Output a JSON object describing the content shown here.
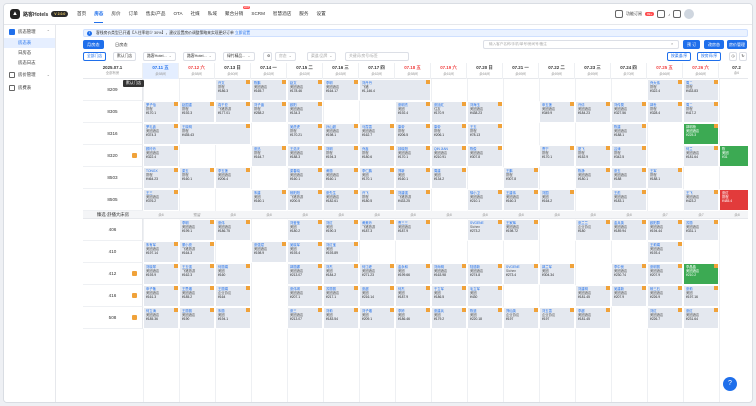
{
  "app": {
    "name": "路客Hotels",
    "version": "V 2.0.0"
  },
  "nav": {
    "items": [
      "首页",
      "房态",
      "房价",
      "订单",
      "售卖/产品",
      "OTA",
      "社媒",
      "私域",
      "聚合分销",
      "SCRM",
      "智慧酒店",
      "服务",
      "设置"
    ],
    "active_index": 1,
    "hot_badge": "HOT"
  },
  "topright": {
    "function_label": "功能订阅",
    "badge_count": "99+"
  },
  "sidebar": {
    "group1": "房态管理",
    "items": [
      "房态表",
      "日房态",
      "房态日志"
    ],
    "active_index": 0,
    "group2": "房价管理",
    "group3": "房费表"
  },
  "notice": {
    "text": "客栈房价类型已开通【人住率较少 30%】，建议设置房价调整策略来实现更好订单",
    "link": "立即设置"
  },
  "view_tabs": {
    "tab1": "月房态",
    "tab2": "日房态",
    "active_index": 0
  },
  "search": {
    "placeholder": "输入客户名称/手机/单号/房间号/备注"
  },
  "actions": {
    "book": "预 订",
    "batch": "改房态",
    "room_manage": "房价管理",
    "more": "更多设置"
  },
  "filters": {
    "all_stores": "全部门店",
    "default_store": "默认门店",
    "store1": "路客Hotel...",
    "store2": "路客Hotel...",
    "store3": "绿竹精品...",
    "status": "房态",
    "channel": "渠道/品牌",
    "keyword": "关键词/房号/标签",
    "sort_date": "按渠道/序",
    "sort_room": "按房间/序"
  },
  "tooltip": "默认门店",
  "date_header": {
    "label": "2025.07.1",
    "sub": "全部有房"
  },
  "days": [
    {
      "d": "07.11 五",
      "s": "余58间",
      "we": true,
      "today": true
    },
    {
      "d": "07.12 六",
      "s": "余58间",
      "we": true,
      "today": false
    },
    {
      "d": "07.13 日",
      "s": "余60间",
      "we": false,
      "today": false
    },
    {
      "d": "07.14 一",
      "s": "余62间",
      "we": false,
      "today": false
    },
    {
      "d": "07.15 二",
      "s": "余62间",
      "we": false,
      "today": false
    },
    {
      "d": "07.16 三",
      "s": "余63间",
      "we": false,
      "today": false
    },
    {
      "d": "07.17 四",
      "s": "余62间",
      "we": false,
      "today": false
    },
    {
      "d": "07.18 五",
      "s": "余58间",
      "we": true,
      "today": false
    },
    {
      "d": "07.19 六",
      "s": "余61间",
      "we": true,
      "today": false
    },
    {
      "d": "07.20 日",
      "s": "余64间",
      "we": false,
      "today": false
    },
    {
      "d": "07.21 一",
      "s": "余69间",
      "we": false,
      "today": false
    },
    {
      "d": "07.22 二",
      "s": "余69间",
      "we": false,
      "today": false
    },
    {
      "d": "07.23 三",
      "s": "余69间",
      "we": false,
      "today": false
    },
    {
      "d": "07.24 四",
      "s": "余70间",
      "we": false,
      "today": false
    },
    {
      "d": "07.25 五",
      "s": "余66间",
      "we": true,
      "today": false
    },
    {
      "d": "07.26 六",
      "s": "余66间",
      "we": true,
      "today": false
    },
    {
      "d": "07.2",
      "s": "余6",
      "we": false,
      "today": false
    }
  ],
  "floor": {
    "label": "臻选·舒播大床房",
    "counts": [
      "余6",
      "预留",
      "余8",
      "余8",
      "余8",
      "余8",
      "余8",
      "余8",
      "余8",
      "余8",
      "余8",
      "余8",
      "余8",
      "余8",
      "余7",
      "余7",
      "余8"
    ]
  },
  "rooms": [
    "8209",
    "8305",
    "8316",
    "8320",
    "8503",
    "8505",
    "406",
    "410",
    "412",
    "416",
    "508"
  ],
  "bookings": [
    {
      "r": 0,
      "c": 3,
      "w": 1,
      "n": "许文",
      "ch": "携程",
      "p": "¥186.3",
      "k": ""
    },
    {
      "r": 0,
      "c": 4,
      "w": 1,
      "n": "陈鹏",
      "ch": "美团酒店",
      "p": "¥165.7",
      "k": ""
    },
    {
      "r": 0,
      "c": 5,
      "w": 1,
      "n": "赵文",
      "ch": "美团酒店",
      "p": "¥178.46",
      "k": ""
    },
    {
      "r": 0,
      "c": 6,
      "w": 1,
      "n": "李明",
      "ch": "美团酒店",
      "p": "¥164.17",
      "k": ""
    },
    {
      "r": 0,
      "c": 7,
      "w": 2,
      "n": "刘丹丹",
      "ch": "飞猪",
      "p": "¥1,146.4",
      "k": ""
    },
    {
      "r": 0,
      "c": 15,
      "w": 1,
      "n": "乔大伟",
      "ch": "携程",
      "p": "¥322.4",
      "k": ""
    },
    {
      "r": 0,
      "c": 16,
      "w": 1,
      "n": "周二",
      "ch": "携程",
      "p": "¥433.83",
      "k": ""
    },
    {
      "r": 1,
      "c": 1,
      "w": 1,
      "n": "罗子怡",
      "ch": "携程",
      "p": "¥170.1",
      "k": ""
    },
    {
      "r": 1,
      "c": 2,
      "w": 1,
      "n": "赵国重",
      "ch": "携程",
      "p": "¥192.3",
      "k": ""
    },
    {
      "r": 1,
      "c": 3,
      "w": 1,
      "n": "真千亚",
      "ch": "飞猪旅游",
      "p": "¥177.01",
      "k": ""
    },
    {
      "r": 1,
      "c": 4,
      "w": 1,
      "n": "刘子涵",
      "ch": "携程",
      "p": "¥258.2",
      "k": ""
    },
    {
      "r": 1,
      "c": 5,
      "w": 1,
      "n": "欧阳",
      "ch": "美团酒店",
      "p": "¥134.3",
      "k": ""
    },
    {
      "r": 1,
      "c": 8,
      "w": 1,
      "n": "张明杰",
      "ch": "美团",
      "p": "¥192.4",
      "k": ""
    },
    {
      "r": 1,
      "c": 9,
      "w": 1,
      "n": "张旭红",
      "ch": "住友",
      "p": "¥170.9",
      "k": ""
    },
    {
      "r": 1,
      "c": 10,
      "w": 1,
      "n": "刘海玉",
      "ch": "美团酒店",
      "p": "¥438.23",
      "k": ""
    },
    {
      "r": 1,
      "c": 12,
      "w": 1,
      "n": "申玉莲",
      "ch": "美团酒店",
      "p": "¥349.9",
      "k": ""
    },
    {
      "r": 1,
      "c": 13,
      "w": 1,
      "n": "许倩",
      "ch": "美团酒店",
      "p": "¥184.23",
      "k": ""
    },
    {
      "r": 1,
      "c": 14,
      "w": 1,
      "n": "刘传昊",
      "ch": "美团酒店",
      "p": "¥327.56",
      "k": ""
    },
    {
      "r": 1,
      "c": 15,
      "w": 1,
      "n": "郭世",
      "ch": "携程",
      "p": "¥328.4",
      "k": ""
    },
    {
      "r": 1,
      "c": 16,
      "w": 1,
      "n": "周二",
      "ch": "携程",
      "p": "¥417.2",
      "k": ""
    },
    {
      "r": 2,
      "c": 1,
      "w": 1,
      "n": "罗礼鑫",
      "ch": "美团酒店",
      "p": "¥374.3",
      "k": ""
    },
    {
      "r": 2,
      "c": 2,
      "w": 2,
      "n": "王晓明",
      "ch": "携程",
      "p": "¥435.43",
      "k": ""
    },
    {
      "r": 2,
      "c": 5,
      "w": 1,
      "n": "吴虎虎",
      "ch": "携程",
      "p": "¥170.21",
      "k": ""
    },
    {
      "r": 2,
      "c": 6,
      "w": 1,
      "n": "孙山超",
      "ch": "美团酒店",
      "p": "¥198.1",
      "k": ""
    },
    {
      "r": 2,
      "c": 7,
      "w": 1,
      "n": "马霞霞",
      "ch": "美团酒店",
      "p": "¥162.7",
      "k": ""
    },
    {
      "r": 2,
      "c": 8,
      "w": 1,
      "n": "康帝",
      "ch": "携程",
      "p": "¥206.5",
      "k": ""
    },
    {
      "r": 2,
      "c": 9,
      "w": 1,
      "n": "康帝",
      "ch": "携程",
      "p": "¥206.1",
      "k": ""
    },
    {
      "r": 2,
      "c": 10,
      "w": 1,
      "n": "王玉",
      "ch": "携程",
      "p": "¥78.13",
      "k": ""
    },
    {
      "r": 2,
      "c": 14,
      "w": 1,
      "n": "陈建",
      "ch": "美团酒店",
      "p": "¥188.1",
      "k": ""
    },
    {
      "r": 2,
      "c": 16,
      "w": 1,
      "n": "郭明杨",
      "ch": "美团酒店",
      "p": "¥225.3",
      "k": "green"
    },
    {
      "r": 3,
      "c": 1,
      "w": 1,
      "n": "顾玲玲",
      "ch": "美团酒店",
      "p": "¥322.4",
      "k": ""
    },
    {
      "r": 3,
      "c": 4,
      "w": 1,
      "n": "张迅",
      "ch": "携程",
      "p": "¥164.7",
      "k": ""
    },
    {
      "r": 3,
      "c": 5,
      "w": 1,
      "n": "王浩天",
      "ch": "美团酒店",
      "p": "¥188.3",
      "k": ""
    },
    {
      "r": 3,
      "c": 6,
      "w": 1,
      "n": "刘明",
      "ch": "携程",
      "p": "¥194.3",
      "k": ""
    },
    {
      "r": 3,
      "c": 7,
      "w": 1,
      "n": "乔鑫",
      "ch": "携程",
      "p": "¥180.6",
      "k": ""
    },
    {
      "r": 3,
      "c": 8,
      "w": 1,
      "n": "钟晓阳",
      "ch": "美团酒店",
      "p": "¥170.1",
      "k": ""
    },
    {
      "r": 3,
      "c": 9,
      "w": 1,
      "n": "QIN JIAN",
      "ch": "美团酒店",
      "p": "¥210.91",
      "k": ""
    },
    {
      "r": 3,
      "c": 10,
      "w": 1,
      "n": "陈俊",
      "ch": "美团酒店",
      "p": "¥307.8",
      "k": ""
    },
    {
      "r": 3,
      "c": 12,
      "w": 1,
      "n": "曹宁",
      "ch": "携程",
      "p": "¥170.1",
      "k": ""
    },
    {
      "r": 3,
      "c": 13,
      "w": 1,
      "n": "夏飞",
      "ch": "携程",
      "p": "¥152.9",
      "k": ""
    },
    {
      "r": 3,
      "c": 14,
      "w": 1,
      "n": "吕涛",
      "ch": "携程",
      "p": "¥342.5",
      "k": ""
    },
    {
      "r": 3,
      "c": 16,
      "w": 1,
      "n": "何兰",
      "ch": "美团酒店",
      "p": "¥181.64",
      "k": ""
    },
    {
      "r": 3,
      "c": 17,
      "w": 1,
      "n": "陈",
      "ch": "美团",
      "p": "¥31",
      "k": "green"
    },
    {
      "r": 4,
      "c": 1,
      "w": 1,
      "n": "TONGX",
      "ch": "携程",
      "p": "¥464.23",
      "k": ""
    },
    {
      "r": 4,
      "c": 2,
      "w": 1,
      "n": "梁玉",
      "ch": "携程",
      "p": "¥160.1",
      "k": ""
    },
    {
      "r": 4,
      "c": 3,
      "w": 1,
      "n": "李玉莲",
      "ch": "美团酒店",
      "p": "¥206.4",
      "k": ""
    },
    {
      "r": 4,
      "c": 5,
      "w": 1,
      "n": "梁春晓",
      "ch": "美团酒店",
      "p": "¥160.1",
      "k": ""
    },
    {
      "r": 4,
      "c": 6,
      "w": 1,
      "n": "黄丽",
      "ch": "美团酒店",
      "p": "¥160.1",
      "k": ""
    },
    {
      "r": 4,
      "c": 7,
      "w": 1,
      "n": "李仁鹏",
      "ch": "美团",
      "p": "¥170.1",
      "k": ""
    },
    {
      "r": 4,
      "c": 8,
      "w": 1,
      "n": "郑新",
      "ch": "美团",
      "p": "¥160.1",
      "k": ""
    },
    {
      "r": 4,
      "c": 9,
      "w": 1,
      "n": "周建",
      "ch": "美团",
      "p": "¥134.2",
      "k": ""
    },
    {
      "r": 4,
      "c": 11,
      "w": 1,
      "n": "王鹏",
      "ch": "携程",
      "p": "¥307.8",
      "k": ""
    },
    {
      "r": 4,
      "c": 13,
      "w": 1,
      "n": "陈静",
      "ch": "美团酒店",
      "p": "¥180.1",
      "k": ""
    },
    {
      "r": 4,
      "c": 14,
      "w": 1,
      "n": "张玉",
      "ch": "美团酒店",
      "p": "¥188",
      "k": ""
    },
    {
      "r": 4,
      "c": 15,
      "w": 1,
      "n": "王军",
      "ch": "携程",
      "p": "¥188.1",
      "k": ""
    },
    {
      "r": 5,
      "c": 1,
      "w": 1,
      "n": "王三",
      "ch": "美团酒店",
      "p": "¥376.2",
      "k": ""
    },
    {
      "r": 5,
      "c": 4,
      "w": 1,
      "n": "朱建",
      "ch": "美团",
      "p": "¥160.1",
      "k": ""
    },
    {
      "r": 5,
      "c": 5,
      "w": 1,
      "n": "杨阳阳",
      "ch": "飞猪旅游",
      "p": "¥200.5",
      "k": ""
    },
    {
      "r": 5,
      "c": 6,
      "w": 1,
      "n": "张先生",
      "ch": "美团酒店",
      "p": "¥182.61",
      "k": ""
    },
    {
      "r": 5,
      "c": 7,
      "w": 1,
      "n": "许飞",
      "ch": "携程",
      "p": "¥180.5",
      "k": ""
    },
    {
      "r": 5,
      "c": 8,
      "w": 1,
      "n": "刘建强",
      "ch": "飞猪旅游",
      "p": "¥433.25",
      "k": ""
    },
    {
      "r": 5,
      "c": 10,
      "w": 1,
      "n": "徐小卫",
      "ch": "美团酒店",
      "p": "¥210.1",
      "k": ""
    },
    {
      "r": 5,
      "c": 11,
      "w": 1,
      "n": "王建伟",
      "ch": "美团酒店",
      "p": "¥160.3",
      "k": ""
    },
    {
      "r": 5,
      "c": 12,
      "w": 1,
      "n": "刘国",
      "ch": "美团",
      "p": "¥164.2",
      "k": ""
    },
    {
      "r": 5,
      "c": 14,
      "w": 1,
      "n": "王彪",
      "ch": "美团酒店",
      "p": "¥183.1",
      "k": ""
    },
    {
      "r": 5,
      "c": 16,
      "w": 1,
      "n": "王飞",
      "ch": "美团酒店",
      "p": "¥423.2",
      "k": ""
    },
    {
      "r": 5,
      "c": 17,
      "w": 1,
      "n": "张红",
      "ch": "携程",
      "p": "¥485.4",
      "k": "red"
    },
    {
      "r": 6,
      "c": 2,
      "w": 1,
      "n": "李明",
      "ch": "美团酒店",
      "p": "¥199.1",
      "k": ""
    },
    {
      "r": 6,
      "c": 3,
      "w": 1,
      "n": "张伟",
      "ch": "美团酒店",
      "p": "¥186.75",
      "k": ""
    },
    {
      "r": 6,
      "c": 5,
      "w": 1,
      "n": "刘莹莹",
      "ch": "美团",
      "p": "¥180.2",
      "k": ""
    },
    {
      "r": 6,
      "c": 6,
      "w": 1,
      "n": "刘红",
      "ch": "美团",
      "p": "¥190.3",
      "k": ""
    },
    {
      "r": 6,
      "c": 7,
      "w": 1,
      "n": "黄美玲",
      "ch": "飞猪旅游",
      "p": "¥187.3",
      "k": ""
    },
    {
      "r": 6,
      "c": 8,
      "w": 1,
      "n": "曹三三",
      "ch": "美团酒店",
      "p": "¥187.9",
      "k": ""
    },
    {
      "r": 6,
      "c": 10,
      "w": 1,
      "n": "SVGENE",
      "ch": "Sichen",
      "p": "¥273.2",
      "k": ""
    },
    {
      "r": 6,
      "c": 11,
      "w": 1,
      "n": "王家辉",
      "ch": "美团酒店",
      "p": "¥198.72",
      "k": ""
    },
    {
      "r": 6,
      "c": 13,
      "w": 1,
      "n": "张兰兰",
      "ch": "企业协议",
      "p": "¥180",
      "k": ""
    },
    {
      "r": 6,
      "c": 14,
      "w": 1,
      "n": "金兵英",
      "ch": "美团酒店",
      "p": "¥189.94",
      "k": ""
    },
    {
      "r": 6,
      "c": 15,
      "w": 1,
      "n": "欧阳群",
      "ch": "美团酒店",
      "p": "¥194.44",
      "k": ""
    },
    {
      "r": 6,
      "c": 16,
      "w": 1,
      "n": "苏丽",
      "ch": "美团酒店",
      "p": "¥331.1",
      "k": ""
    },
    {
      "r": 7,
      "c": 1,
      "w": 1,
      "n": "朱有军",
      "ch": "美团酒店",
      "p": "¥197.14",
      "k": ""
    },
    {
      "r": 7,
      "c": 2,
      "w": 1,
      "n": "董小亮",
      "ch": "飞猪旅游",
      "p": "¥164.3",
      "k": ""
    },
    {
      "r": 7,
      "c": 4,
      "w": 1,
      "n": "张强斌",
      "ch": "美团酒店",
      "p": "¥198.9",
      "k": ""
    },
    {
      "r": 7,
      "c": 5,
      "w": 1,
      "n": "吴晓军",
      "ch": "美团",
      "p": "¥193.4",
      "k": ""
    },
    {
      "r": 7,
      "c": 6,
      "w": 1,
      "n": "刘红宝",
      "ch": "美团",
      "p": "¥193.89",
      "k": ""
    },
    {
      "r": 7,
      "c": 15,
      "w": 1,
      "n": "王莉娟",
      "ch": "美团酒店",
      "p": "¥193.4",
      "k": ""
    },
    {
      "r": 8,
      "c": 1,
      "w": 1,
      "n": "刘晓琴",
      "ch": "美团酒店",
      "p": "¥193.9",
      "k": ""
    },
    {
      "r": 8,
      "c": 2,
      "w": 1,
      "n": "王玉强",
      "ch": "飞猪旅游",
      "p": "¥162.3",
      "k": ""
    },
    {
      "r": 8,
      "c": 3,
      "w": 1,
      "n": "何丽娟",
      "ch": "美团",
      "p": "¥160",
      "k": ""
    },
    {
      "r": 8,
      "c": 5,
      "w": 1,
      "n": "郭丽娜",
      "ch": "美团酒店",
      "p": "¥213.07",
      "k": ""
    },
    {
      "r": 8,
      "c": 6,
      "w": 1,
      "n": "刘杰",
      "ch": "美团",
      "p": "¥184.2",
      "k": ""
    },
    {
      "r": 8,
      "c": 7,
      "w": 1,
      "n": "何江峰",
      "ch": "美团酒店",
      "p": "¥271.23",
      "k": ""
    },
    {
      "r": 8,
      "c": 8,
      "w": 1,
      "n": "金永和",
      "ch": "美团",
      "p": "¥199.66",
      "k": ""
    },
    {
      "r": 8,
      "c": 9,
      "w": 1,
      "n": "刘尚明",
      "ch": "美团酒店",
      "p": "¥163.98",
      "k": ""
    },
    {
      "r": 8,
      "c": 10,
      "w": 1,
      "n": "陆德新",
      "ch": "美团酒店",
      "p": "¥274.8",
      "k": ""
    },
    {
      "r": 8,
      "c": 11,
      "w": 1,
      "n": "SVGENE",
      "ch": "Sichen",
      "p": "¥273.4",
      "k": ""
    },
    {
      "r": 8,
      "c": 12,
      "w": 1,
      "n": "郭兰军",
      "ch": "美团",
      "p": "¥304.34",
      "k": ""
    },
    {
      "r": 8,
      "c": 14,
      "w": 1,
      "n": "李中良",
      "ch": "美团酒店",
      "p": "¥230.74",
      "k": ""
    },
    {
      "r": 8,
      "c": 15,
      "w": 1,
      "n": "张明丽",
      "ch": "美团酒店",
      "p": "¥207.9",
      "k": ""
    },
    {
      "r": 8,
      "c": 16,
      "w": 1,
      "n": "李晶晶",
      "ch": "美团酒店",
      "p": "¥210.2",
      "k": "green"
    },
    {
      "r": 9,
      "c": 1,
      "w": 1,
      "n": "申子敬",
      "ch": "美团酒店",
      "p": "¥161.3",
      "k": ""
    },
    {
      "r": 9,
      "c": 2,
      "w": 1,
      "n": "王思烟",
      "ch": "美团酒店",
      "p": "¥185.2",
      "k": ""
    },
    {
      "r": 9,
      "c": 3,
      "w": 1,
      "n": "王丽娟",
      "ch": "企业协议",
      "p": "¥164",
      "k": ""
    },
    {
      "r": 9,
      "c": 5,
      "w": 1,
      "n": "张伟琪",
      "ch": "美团酒店",
      "p": "¥207.1",
      "k": ""
    },
    {
      "r": 9,
      "c": 6,
      "w": 1,
      "n": "苏丽丽",
      "ch": "美团酒店",
      "p": "¥217.1",
      "k": ""
    },
    {
      "r": 9,
      "c": 7,
      "w": 1,
      "n": "张超",
      "ch": "美团",
      "p": "¥216.14",
      "k": ""
    },
    {
      "r": 9,
      "c": 8,
      "w": 1,
      "n": "何杰",
      "ch": "美团",
      "p": "¥187.9",
      "k": ""
    },
    {
      "r": 9,
      "c": 9,
      "w": 1,
      "n": "于立军",
      "ch": "美团",
      "p": "¥186.5",
      "k": ""
    },
    {
      "r": 9,
      "c": 10,
      "w": 1,
      "n": "毛立军",
      "ch": "美团",
      "p": "¥430",
      "k": ""
    },
    {
      "r": 9,
      "c": 13,
      "w": 1,
      "n": "刘建明",
      "ch": "美团酒店",
      "p": "¥181.45",
      "k": ""
    },
    {
      "r": 9,
      "c": 14,
      "w": 1,
      "n": "吴建新",
      "ch": "美团酒店",
      "p": "¥207.9",
      "k": ""
    },
    {
      "r": 9,
      "c": 15,
      "w": 1,
      "n": "杨三石",
      "ch": "美团酒店",
      "p": "¥226.9",
      "k": ""
    },
    {
      "r": 9,
      "c": 16,
      "w": 1,
      "n": "张莉",
      "ch": "美团",
      "p": "¥197.16",
      "k": ""
    },
    {
      "r": 10,
      "c": 1,
      "w": 1,
      "n": "何立涛",
      "ch": "美团酒店",
      "p": "¥185.36",
      "k": ""
    },
    {
      "r": 10,
      "c": 2,
      "w": 1,
      "n": "王丽丽",
      "ch": "美团酒店",
      "p": "¥190",
      "k": ""
    },
    {
      "r": 10,
      "c": 3,
      "w": 1,
      "n": "朱丽",
      "ch": "美团",
      "p": "¥194.1",
      "k": ""
    },
    {
      "r": 10,
      "c": 5,
      "w": 1,
      "n": "张三",
      "ch": "美团酒店",
      "p": "¥213.07",
      "k": ""
    },
    {
      "r": 10,
      "c": 6,
      "w": 1,
      "n": "刘莉",
      "ch": "美团",
      "p": "¥183.54",
      "k": ""
    },
    {
      "r": 10,
      "c": 7,
      "w": 1,
      "n": "刘子烟",
      "ch": "美团",
      "p": "¥209.1",
      "k": ""
    },
    {
      "r": 10,
      "c": 8,
      "w": 1,
      "n": "李婷",
      "ch": "美团",
      "p": "¥186.46",
      "k": ""
    },
    {
      "r": 10,
      "c": 9,
      "w": 1,
      "n": "张建兵",
      "ch": "美团",
      "p": "¥179.2",
      "k": ""
    },
    {
      "r": 10,
      "c": 10,
      "w": 1,
      "n": "陈道",
      "ch": "美团",
      "p": "¥220.18",
      "k": ""
    },
    {
      "r": 10,
      "c": 11,
      "w": 1,
      "n": "郑仙英",
      "ch": "企业协议",
      "p": "¥197",
      "k": ""
    },
    {
      "r": 10,
      "c": 12,
      "w": 1,
      "n": "刘玉霞",
      "ch": "企业协议",
      "p": "¥197",
      "k": ""
    },
    {
      "r": 10,
      "c": 13,
      "w": 1,
      "n": "李超",
      "ch": "美团酒店",
      "p": "¥181.45",
      "k": ""
    },
    {
      "r": 10,
      "c": 15,
      "w": 1,
      "n": "刘红",
      "ch": "美团酒店",
      "p": "¥226.7",
      "k": ""
    },
    {
      "r": 10,
      "c": 16,
      "w": 1,
      "n": "张红",
      "ch": "美团酒店",
      "p": "¥231.64",
      "k": ""
    }
  ],
  "fab": "?"
}
